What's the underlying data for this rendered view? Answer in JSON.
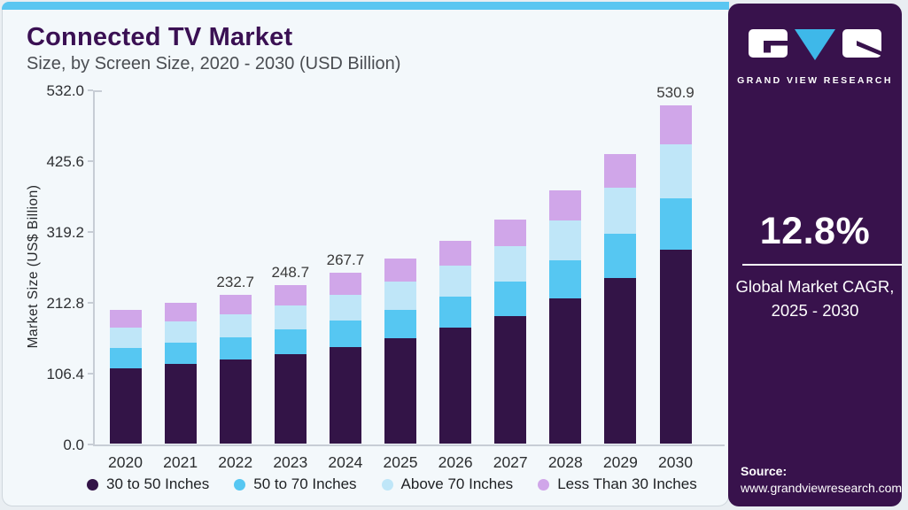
{
  "header": {
    "title": "Connected TV Market",
    "subtitle": "Size, by Screen Size, 2020 - 2030 (USD Billion)"
  },
  "chart_data": {
    "type": "bar",
    "stacked": true,
    "title": "Connected TV Market Size, by Screen Size, 2020 - 2030 (USD Billion)",
    "xlabel": "",
    "ylabel": "Market Size (US$ Billion)",
    "ylim": [
      0,
      532
    ],
    "yticks": [
      "0.0",
      "106.4",
      "212.8",
      "319.2",
      "425.6",
      "532.0"
    ],
    "grid": false,
    "legend_position": "bottom",
    "categories": [
      "2020",
      "2021",
      "2022",
      "2023",
      "2024",
      "2025",
      "2026",
      "2027",
      "2028",
      "2029",
      "2030"
    ],
    "series": [
      {
        "name": "30 to 50 Inches",
        "color": "#331447",
        "values": [
          118.6,
          124.8,
          131.7,
          140.9,
          152.0,
          165.4,
          181.5,
          200.5,
          227.2,
          260.1,
          304.2
        ]
      },
      {
        "name": "50 to 70 Inches",
        "color": "#56c7f2",
        "values": [
          32.0,
          33.7,
          35.5,
          37.9,
          40.8,
          44.4,
          48.6,
          53.6,
          60.7,
          69.3,
          81.0
        ]
      },
      {
        "name": "Above 70 Inches",
        "color": "#bfe6f8",
        "values": [
          31.3,
          33.2,
          35.2,
          37.9,
          41.1,
          44.9,
          49.6,
          55.1,
          62.8,
          72.3,
          84.9
        ]
      },
      {
        "name": "Less Than 30 Inches",
        "color": "#d0a6e9",
        "values": [
          28.4,
          29.2,
          30.3,
          32.0,
          33.8,
          36.2,
          39.1,
          42.3,
          47.1,
          53.0,
          60.8
        ]
      }
    ],
    "totals": [
      210.3,
      220.9,
      232.7,
      248.7,
      267.7,
      290.9,
      318.8,
      351.5,
      397.8,
      454.7,
      530.9
    ],
    "total_labels": {
      "2022": "232.7",
      "2023": "248.7",
      "2024": "267.7",
      "2030": "530.9"
    }
  },
  "sidebar": {
    "brand": "GRAND VIEW RESEARCH",
    "cagr_value": "12.8%",
    "cagr_caption_line1": "Global Market CAGR,",
    "cagr_caption_line2": "2025 - 2030",
    "source_label": "Source:",
    "source_url": "www.grandviewresearch.com",
    "colors": {
      "background": "#38124c",
      "logo_accent": "#3eb8e9"
    }
  },
  "theme": {
    "card_background": "#f3f8fb",
    "top_strip": "#5ac6f1",
    "title_color": "#3a1053",
    "axis_color": "#c7cdd5"
  }
}
